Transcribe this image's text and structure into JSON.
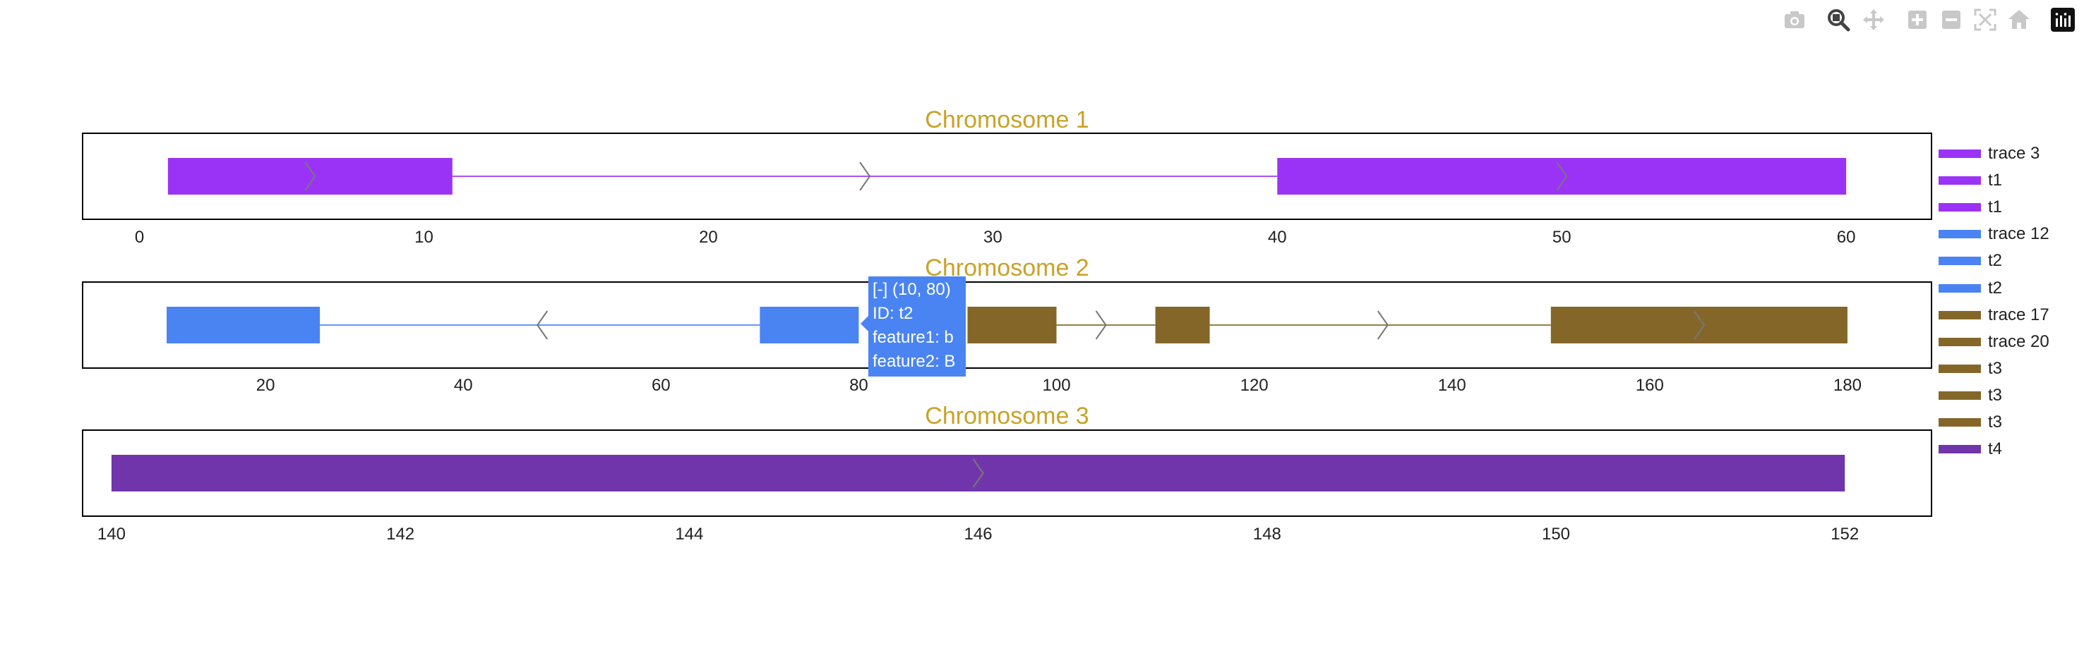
{
  "modebar": {
    "buttons": [
      {
        "name": "camera-icon",
        "title": "Download plot as a png"
      },
      {
        "name": "zoom-icon",
        "title": "Zoom"
      },
      {
        "name": "pan-icon",
        "title": "Pan"
      },
      {
        "name": "zoom-in-icon",
        "title": "Zoom in"
      },
      {
        "name": "zoom-out-icon",
        "title": "Zoom out"
      },
      {
        "name": "autoscale-icon",
        "title": "Autoscale"
      },
      {
        "name": "reset-axes-icon",
        "title": "Reset axes"
      },
      {
        "name": "plotly-logo-icon",
        "title": "Produced with Plotly"
      }
    ]
  },
  "legend": {
    "placement": "right",
    "items": [
      {
        "label": "trace 3",
        "color": "#9b33f7"
      },
      {
        "label": "t1",
        "color": "#9b33f7"
      },
      {
        "label": "t1",
        "color": "#9b33f7"
      },
      {
        "label": "trace 12",
        "color": "#4a84f3"
      },
      {
        "label": "t2",
        "color": "#4a84f3"
      },
      {
        "label": "t2",
        "color": "#4a84f3"
      },
      {
        "label": "trace 17",
        "color": "#846728"
      },
      {
        "label": "trace 20",
        "color": "#846728"
      },
      {
        "label": "t3",
        "color": "#846728"
      },
      {
        "label": "t3",
        "color": "#846728"
      },
      {
        "label": "t3",
        "color": "#846728"
      },
      {
        "label": "t4",
        "color": "#7035ab"
      }
    ]
  },
  "hover": {
    "lines": [
      "[-] (10, 80)",
      "ID: t2",
      "feature1: b",
      "feature2: B"
    ],
    "color": "#4a84f3"
  },
  "chart_data": [
    {
      "type": "gene-track",
      "title": "Chromosome 1",
      "title_color": "#c9a227",
      "xlim": [
        -2,
        63
      ],
      "xticks": [
        0,
        10,
        20,
        30,
        40,
        50,
        60
      ],
      "tracks": [
        {
          "color": "#9b33f7",
          "strand": "+",
          "exons": [
            [
              1,
              11
            ],
            [
              40,
              60
            ]
          ],
          "introns": [
            [
              11,
              40
            ]
          ],
          "arrows": [
            6,
            25.5,
            50
          ]
        }
      ]
    },
    {
      "type": "gene-track",
      "title": "Chromosome 2",
      "title_color": "#c9a227",
      "xlim": [
        1.5,
        188.5
      ],
      "xticks": [
        20,
        40,
        60,
        80,
        100,
        120,
        140,
        160,
        180
      ],
      "tracks": [
        {
          "color": "#4a84f3",
          "strand": "-",
          "exons": [
            [
              10,
              25.5
            ],
            [
              70,
              80
            ]
          ],
          "introns": [
            [
              25.5,
              70
            ]
          ],
          "arrows": [
            48
          ]
        },
        {
          "color": "#846728",
          "strand": "+",
          "exons": [
            [
              91,
              100
            ],
            [
              110,
              115.5
            ],
            [
              150,
              180
            ]
          ],
          "introns": [
            [
              100,
              110
            ],
            [
              115.5,
              150
            ]
          ],
          "arrows": [
            104.5,
            133,
            165
          ]
        }
      ]
    },
    {
      "type": "gene-track",
      "title": "Chromosome 3",
      "title_color": "#c9a227",
      "xlim": [
        139.8,
        152.6
      ],
      "xticks": [
        140,
        142,
        144,
        146,
        148,
        150,
        152
      ],
      "tracks": [
        {
          "color": "#7035ab",
          "strand": "+",
          "exons": [
            [
              140,
              152
            ]
          ],
          "introns": [],
          "arrows": [
            146
          ]
        }
      ]
    }
  ]
}
